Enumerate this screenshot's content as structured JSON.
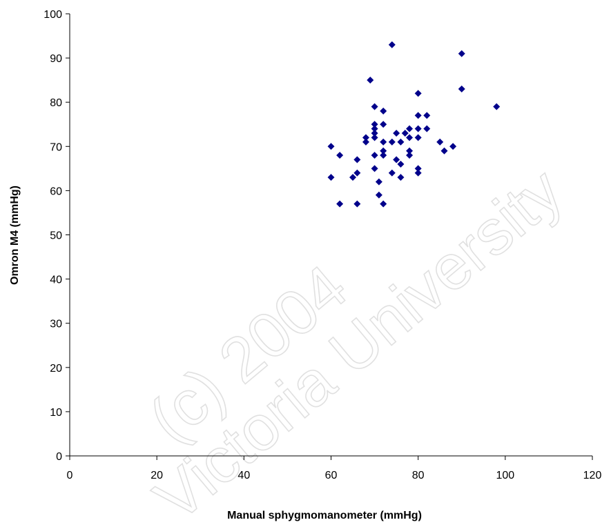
{
  "chart_data": {
    "type": "scatter",
    "xlabel": "Manual sphygmomanometer (mmHg)",
    "ylabel": "Omron M4 (mmHg)",
    "xlim": [
      0,
      120
    ],
    "ylim": [
      0,
      100
    ],
    "xticks": [
      0,
      20,
      40,
      60,
      80,
      100,
      120
    ],
    "yticks": [
      0,
      10,
      20,
      30,
      40,
      50,
      60,
      70,
      80,
      90,
      100
    ],
    "grid": false,
    "marker_color": "#00008b",
    "series": [
      {
        "points": [
          [
            74,
            93
          ],
          [
            90,
            91
          ],
          [
            69,
            85
          ],
          [
            90,
            83
          ],
          [
            80,
            82
          ],
          [
            70,
            79
          ],
          [
            98,
            79
          ],
          [
            72,
            78
          ],
          [
            80,
            77
          ],
          [
            82,
            77
          ],
          [
            70,
            75
          ],
          [
            72,
            75
          ],
          [
            70,
            74
          ],
          [
            78,
            74
          ],
          [
            80,
            74
          ],
          [
            82,
            74
          ],
          [
            70,
            73
          ],
          [
            75,
            73
          ],
          [
            77,
            73
          ],
          [
            78,
            72
          ],
          [
            80,
            72
          ],
          [
            68,
            72
          ],
          [
            70,
            72
          ],
          [
            68,
            71
          ],
          [
            72,
            71
          ],
          [
            74,
            71
          ],
          [
            76,
            71
          ],
          [
            85,
            71
          ],
          [
            60,
            70
          ],
          [
            88,
            70
          ],
          [
            72,
            69
          ],
          [
            78,
            69
          ],
          [
            86,
            69
          ],
          [
            62,
            68
          ],
          [
            70,
            68
          ],
          [
            72,
            68
          ],
          [
            78,
            68
          ],
          [
            66,
            67
          ],
          [
            75,
            67
          ],
          [
            76,
            66
          ],
          [
            70,
            65
          ],
          [
            80,
            65
          ],
          [
            66,
            64
          ],
          [
            74,
            64
          ],
          [
            80,
            64
          ],
          [
            65,
            63
          ],
          [
            60,
            63
          ],
          [
            76,
            63
          ],
          [
            71,
            62
          ],
          [
            71,
            59
          ],
          [
            62,
            57
          ],
          [
            66,
            57
          ],
          [
            72,
            57
          ]
        ]
      }
    ]
  },
  "watermark": {
    "line1": "(c) 2004",
    "line2": "Victoria University"
  }
}
